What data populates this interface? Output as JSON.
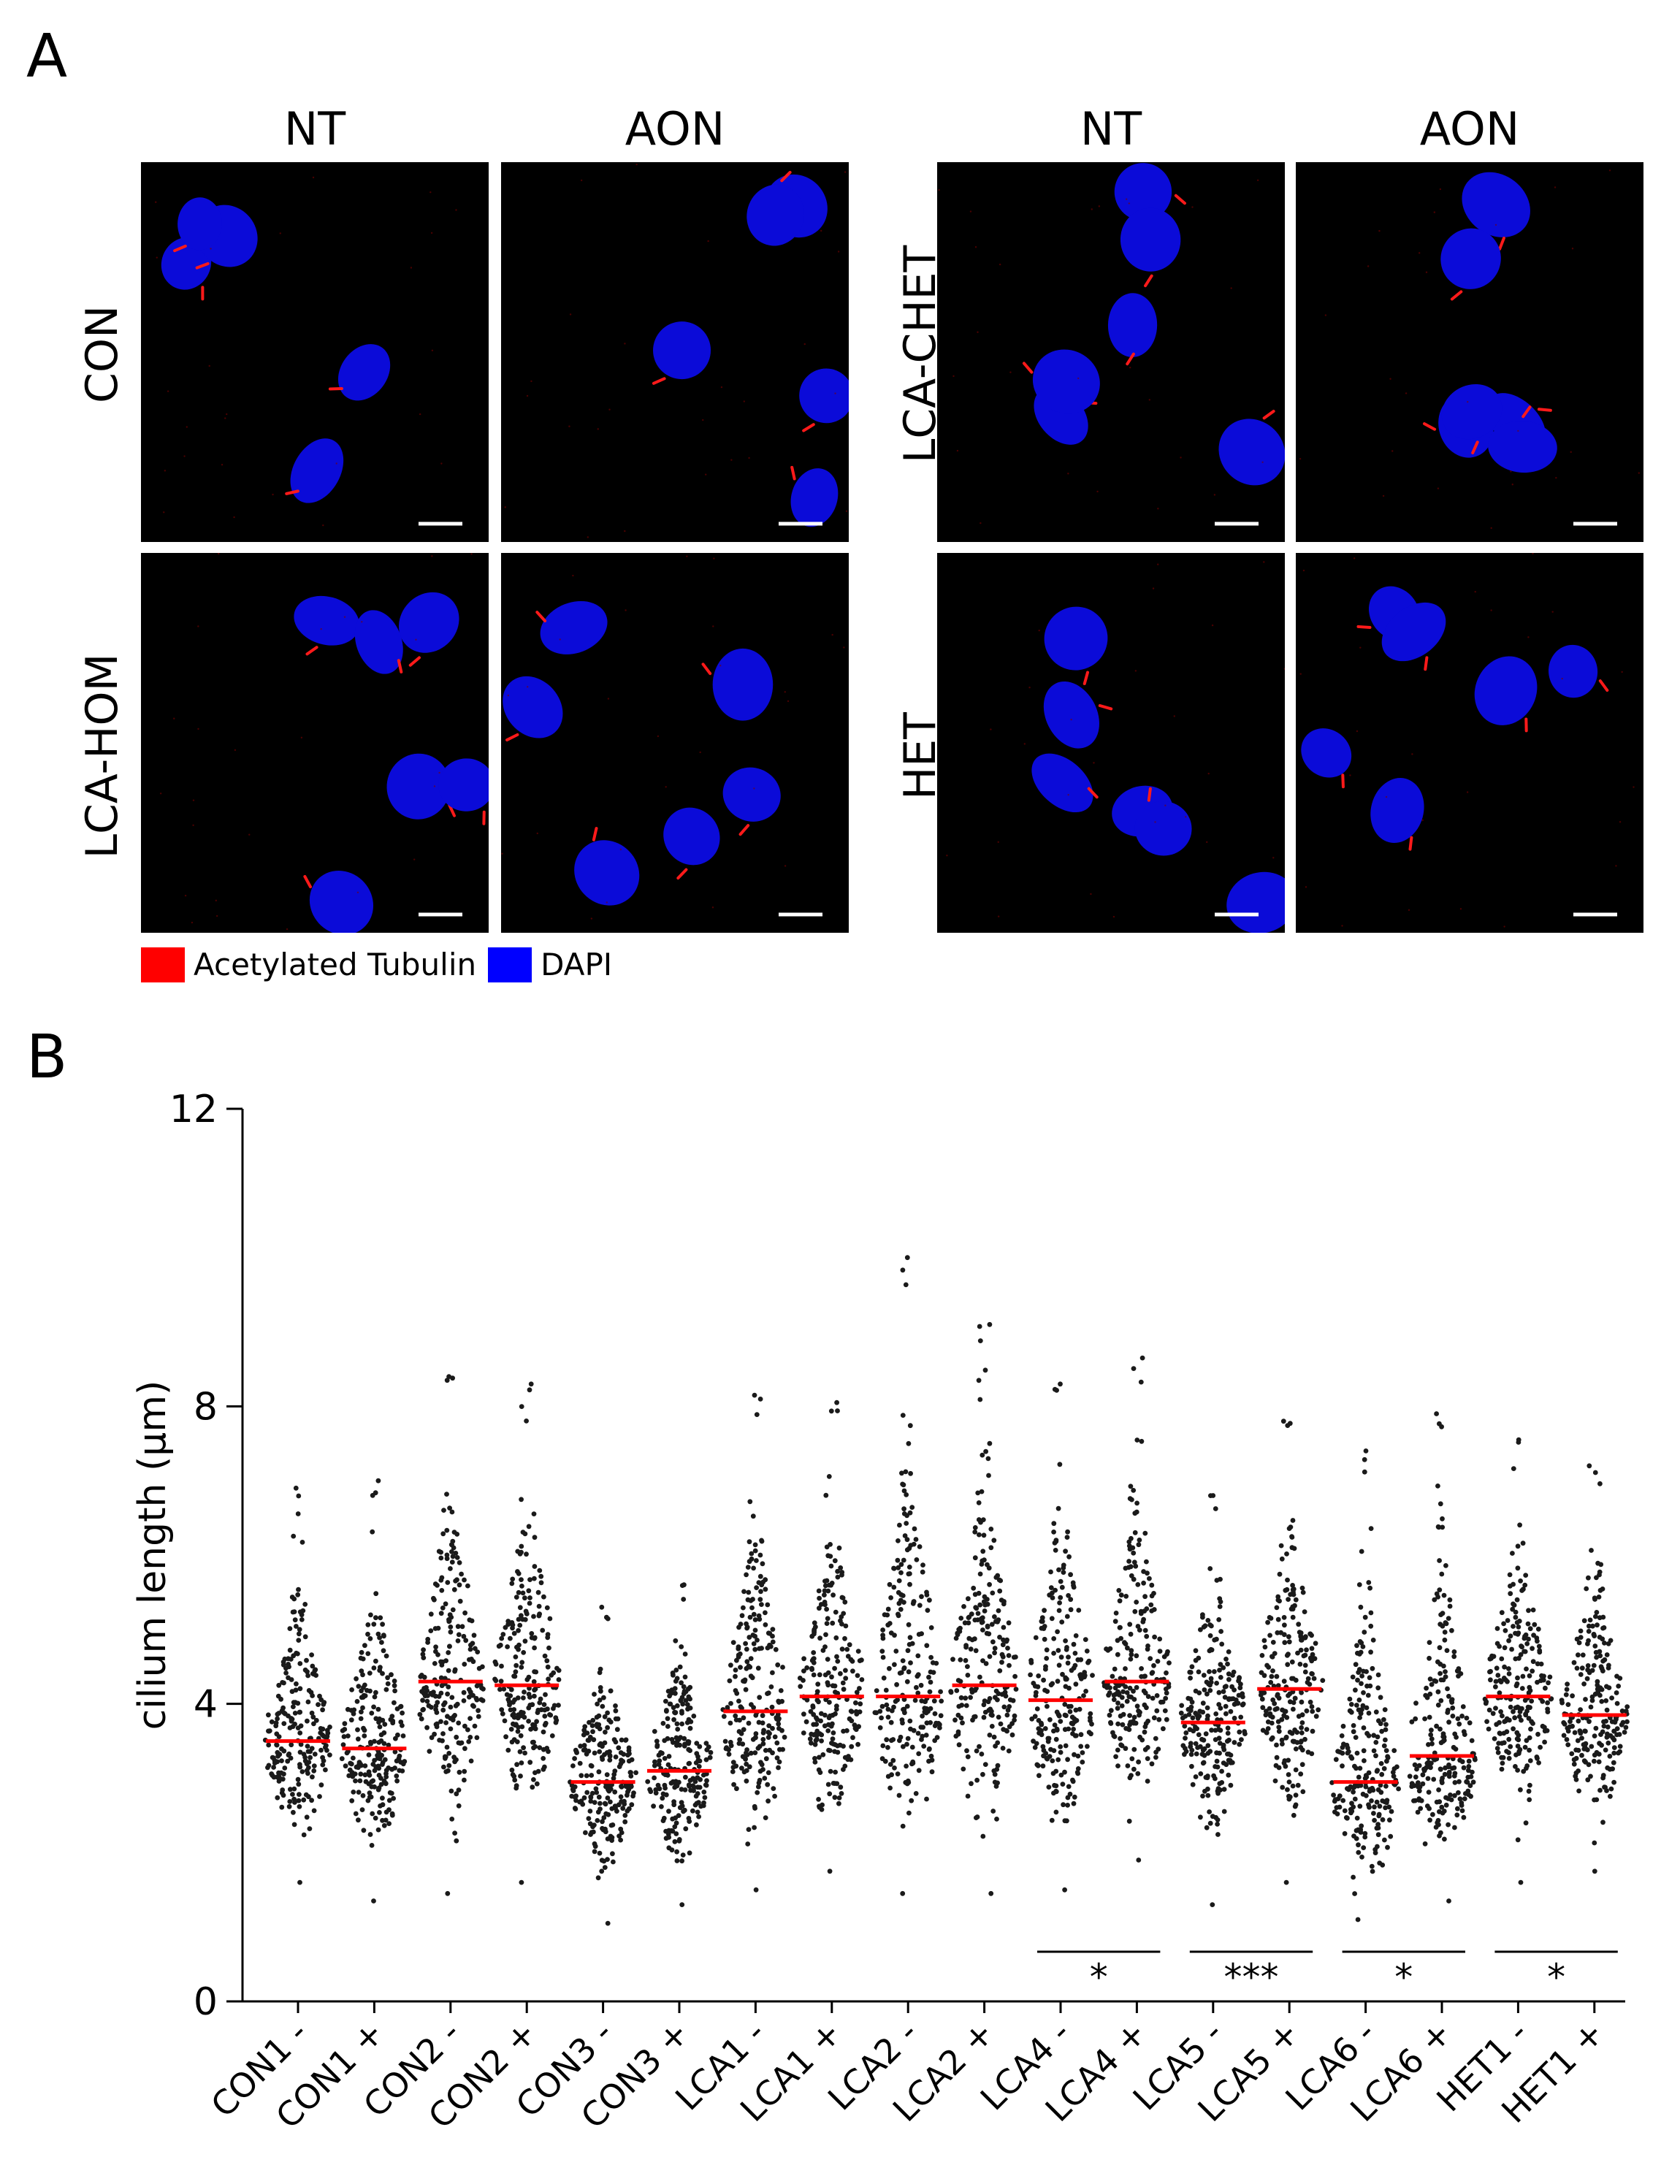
{
  "panels": {
    "a": "A",
    "b": "B"
  },
  "panel_a": {
    "col_labels": [
      "NT",
      "AON",
      "NT",
      "AON"
    ],
    "row_labels_left": [
      "CON",
      "LCA-HOM"
    ],
    "row_labels_right": [
      "LCA-CHET",
      "HET"
    ],
    "legend": [
      {
        "label": "Acetylated Tubulin",
        "color": "#ff0000"
      },
      {
        "label": "DAPI",
        "color": "#0000ff"
      }
    ],
    "colors": {
      "nucleus": "#0b0bd8",
      "cilium": "#ff1a1a",
      "background": "#000000",
      "scalebar": "#ffffff"
    }
  },
  "chart_data": {
    "type": "scatter",
    "ylabel": "cilium length (µm)",
    "ylim": [
      0,
      12
    ],
    "yticks": [
      0,
      4,
      8,
      12
    ],
    "categories": [
      "CON1 -",
      "CON1 +",
      "CON2 -",
      "CON2 +",
      "CON3 -",
      "CON3 +",
      "LCA1 -",
      "LCA1 +",
      "LCA2 -",
      "LCA2 +",
      "LCA4 -",
      "LCA4 +",
      "LCA5 -",
      "LCA5 +",
      "LCA6 -",
      "LCA6 +",
      "HET1 -",
      "HET1 +"
    ],
    "medians": [
      3.5,
      3.4,
      4.3,
      4.25,
      2.95,
      3.1,
      3.9,
      4.1,
      4.1,
      4.25,
      4.05,
      4.3,
      3.75,
      4.2,
      2.95,
      3.3,
      4.1,
      3.85
    ],
    "max": [
      6.9,
      7.0,
      8.4,
      8.3,
      5.3,
      5.6,
      8.15,
      8.05,
      10.0,
      9.1,
      8.3,
      8.65,
      6.8,
      7.8,
      7.4,
      7.9,
      7.55,
      7.2
    ],
    "min": [
      1.6,
      1.35,
      1.45,
      1.6,
      1.05,
      1.3,
      1.5,
      1.75,
      1.45,
      1.45,
      1.5,
      1.9,
      1.3,
      1.6,
      1.1,
      1.35,
      1.6,
      1.75
    ],
    "significance": [
      {
        "from": "LCA4 -",
        "to": "LCA4 +",
        "label": "*"
      },
      {
        "from": "LCA5 -",
        "to": "LCA5 +",
        "label": "***"
      },
      {
        "from": "LCA6 -",
        "to": "LCA6 +",
        "label": "*"
      },
      {
        "from": "HET1 -",
        "to": "HET1 +",
        "label": "*"
      }
    ],
    "colors": {
      "points": "#1a1a1a",
      "median": "#ff0000",
      "axis": "#000000"
    }
  }
}
